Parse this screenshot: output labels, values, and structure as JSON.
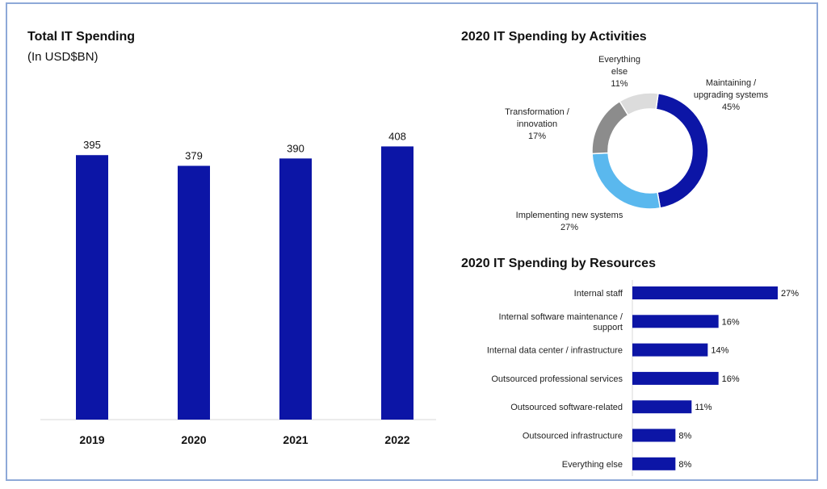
{
  "colors": {
    "bar": "#0c15a6",
    "frame": "#8ea9d8"
  },
  "chart_data": [
    {
      "type": "bar",
      "title": "Total IT Spending",
      "subtitle": "(In USD$BN)",
      "categories": [
        "2019",
        "2020",
        "2021",
        "2022"
      ],
      "values": [
        395,
        379,
        390,
        408
      ],
      "data_labels": [
        "395",
        "379",
        "390",
        "408"
      ],
      "ylim": [
        0,
        470
      ],
      "grid": false,
      "legend": "none"
    },
    {
      "type": "pie",
      "style": "donut",
      "title": "2020 IT Spending by Activities",
      "slices": [
        {
          "label_lines": [
            "Maintaining /",
            "upgrading systems"
          ],
          "pct_label": "45%",
          "value": 45,
          "color": "#0c15a6"
        },
        {
          "label_lines": [
            "Implementing new systems"
          ],
          "pct_label": "27%",
          "value": 27,
          "color": "#5ab8ee"
        },
        {
          "label_lines": [
            "Transformation /",
            "innovation"
          ],
          "pct_label": "17%",
          "value": 17,
          "color": "#8c8c8c"
        },
        {
          "label_lines": [
            "Everything",
            "else"
          ],
          "pct_label": "11%",
          "value": 11,
          "color": "#dcdcdc"
        }
      ]
    },
    {
      "type": "bar",
      "orientation": "horizontal",
      "title": "2020 IT Spending by Resources",
      "categories": [
        [
          "Internal staff"
        ],
        [
          "Internal software maintenance /",
          "support"
        ],
        [
          "Internal data center / infrastructure"
        ],
        [
          "Outsourced professional services"
        ],
        [
          "Outsourced software-related"
        ],
        [
          "Outsourced infrastructure"
        ],
        [
          "Everything else"
        ]
      ],
      "values": [
        27,
        16,
        14,
        16,
        11,
        8,
        8
      ],
      "data_labels": [
        "27%",
        "16%",
        "14%",
        "16%",
        "11%",
        "8%",
        "8%"
      ],
      "xlim": [
        0,
        27
      ],
      "legend": "none"
    }
  ]
}
